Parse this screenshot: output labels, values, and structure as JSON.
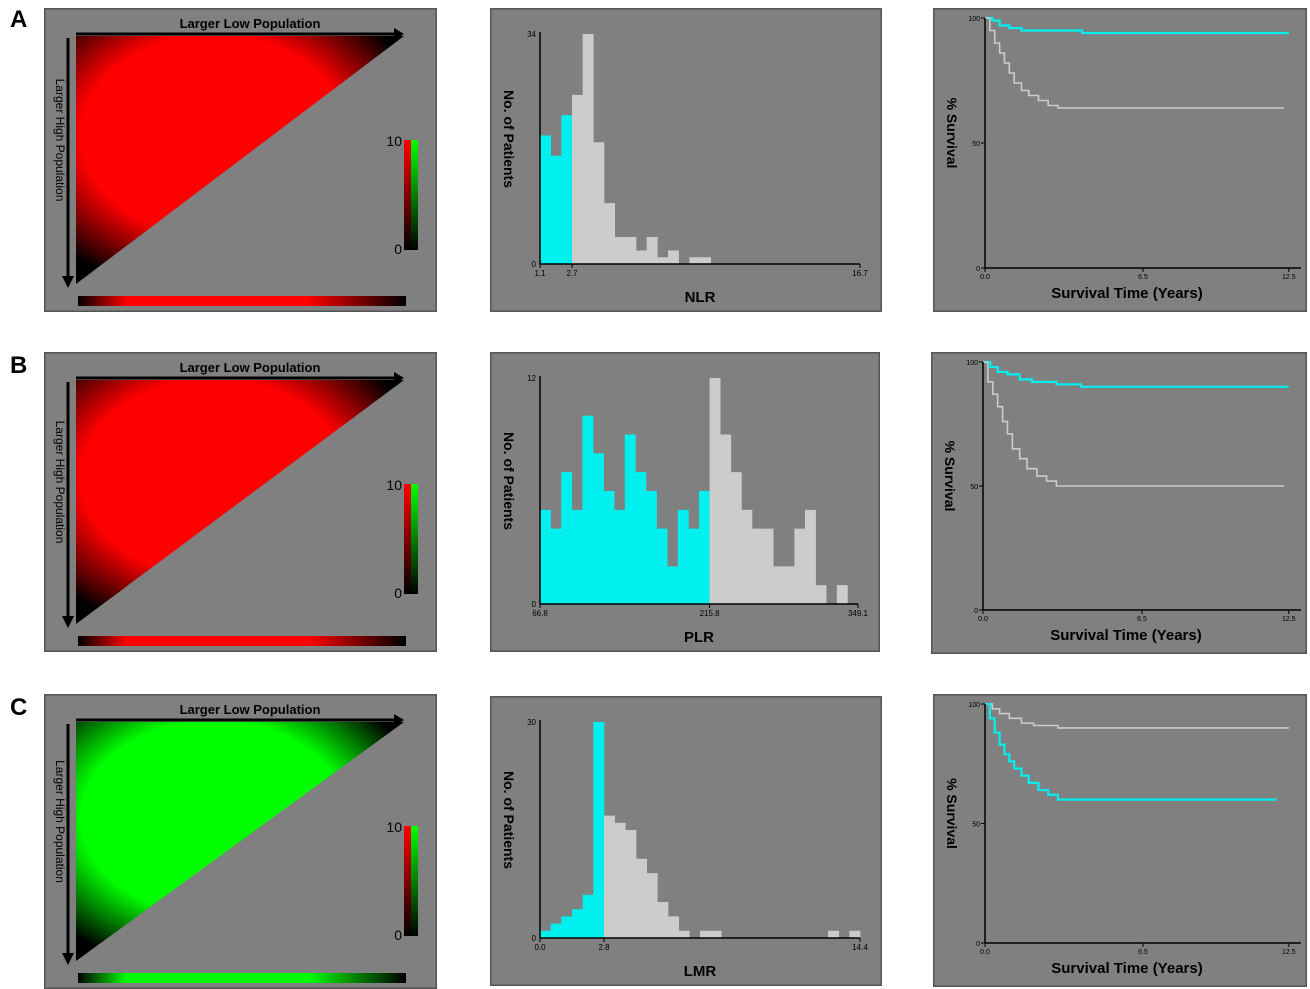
{
  "colors": {
    "panel_bg": "#808080",
    "frame": "#555555",
    "red": "#ff0000",
    "green": "#00ff00",
    "cyan": "#00f0f0",
    "light_gray": "#cccccc",
    "axis": "#000000"
  },
  "heatmap_labels": {
    "top_arrow": "Larger Low Population",
    "left_arrow": "Larger High Population",
    "scale_max": "10",
    "scale_min": "0"
  },
  "rows": [
    {
      "label": "A",
      "heatmap_color": "red"
    },
    {
      "label": "B",
      "heatmap_color": "red"
    },
    {
      "label": "C",
      "heatmap_color": "green"
    }
  ],
  "chart_data": [
    {
      "type": "heatmap",
      "panel": "A-left",
      "title": "",
      "xlabel": "Larger Low Population",
      "ylabel": "Larger High Population",
      "color_scale": {
        "min": 0,
        "max": 10,
        "colors": [
          "#000000",
          "#ff0000",
          "#00ff00"
        ]
      },
      "dominant_color": "red"
    },
    {
      "type": "bar",
      "panel": "A-middle",
      "xlabel": "NLR",
      "ylabel": "No. of Patients",
      "x_ticks": [
        "1.1",
        "2.7",
        "16.7"
      ],
      "y_ticks": [
        "0",
        "34"
      ],
      "ylim": [
        0,
        34
      ],
      "cutoff": "2.7",
      "values": [
        19,
        16,
        22,
        25,
        34,
        18,
        9,
        4,
        4,
        2,
        4,
        1,
        2,
        0,
        1,
        1,
        0,
        0,
        0,
        0,
        0,
        0,
        0,
        0,
        0,
        0,
        0,
        0,
        0,
        0
      ],
      "cutoff_index": 3
    },
    {
      "type": "line",
      "panel": "A-right",
      "xlabel": "Survival Time (Years)",
      "ylabel": "% Survival",
      "x_ticks": [
        "0.0",
        "6.5",
        "12.5"
      ],
      "y_ticks": [
        "0",
        "50",
        "100"
      ],
      "xlim": [
        0,
        13
      ],
      "ylim": [
        0,
        100
      ],
      "series": [
        {
          "color": "cyan",
          "x": [
            0,
            0.3,
            0.6,
            1.0,
            1.5,
            3.0,
            4.0,
            8.0,
            12.5
          ],
          "y": [
            100,
            99,
            97,
            96,
            95,
            95,
            94,
            94,
            94
          ]
        },
        {
          "color": "gray",
          "x": [
            0,
            0.2,
            0.4,
            0.6,
            0.8,
            1.0,
            1.2,
            1.5,
            1.8,
            2.2,
            2.6,
            3.0,
            4.0,
            8.0,
            12.3
          ],
          "y": [
            100,
            95,
            90,
            86,
            82,
            78,
            74,
            71,
            69,
            67,
            65,
            64,
            64,
            64,
            64
          ]
        }
      ]
    },
    {
      "type": "heatmap",
      "panel": "B-left",
      "title": "",
      "xlabel": "Larger Low Population",
      "ylabel": "Larger High Population",
      "color_scale": {
        "min": 0,
        "max": 10,
        "colors": [
          "#000000",
          "#ff0000",
          "#00ff00"
        ]
      },
      "dominant_color": "red"
    },
    {
      "type": "bar",
      "panel": "B-middle",
      "xlabel": "PLR",
      "ylabel": "No. of Patients",
      "x_ticks": [
        "66.8",
        "215.8",
        "349.1"
      ],
      "y_ticks": [
        "0",
        "12"
      ],
      "ylim": [
        0,
        12
      ],
      "cutoff": "215.8",
      "values": [
        5,
        4,
        7,
        5,
        10,
        8,
        6,
        5,
        9,
        7,
        6,
        4,
        2,
        5,
        4,
        6,
        12,
        9,
        7,
        5,
        4,
        4,
        2,
        2,
        4,
        5,
        1,
        0,
        1,
        0
      ],
      "cutoff_index": 16
    },
    {
      "type": "line",
      "panel": "B-right",
      "xlabel": "Survival Time (Years)",
      "ylabel": "% Survival",
      "x_ticks": [
        "0.0",
        "6.5",
        "12.5"
      ],
      "y_ticks": [
        "0",
        "50",
        "100"
      ],
      "xlim": [
        0,
        13
      ],
      "ylim": [
        0,
        100
      ],
      "series": [
        {
          "color": "cyan",
          "x": [
            0,
            0.3,
            0.6,
            1.0,
            1.5,
            2.0,
            3.0,
            4.0,
            8.0,
            12.5
          ],
          "y": [
            100,
            98,
            96,
            95,
            93,
            92,
            91,
            90,
            90,
            90
          ]
        },
        {
          "color": "gray",
          "x": [
            0,
            0.2,
            0.4,
            0.6,
            0.8,
            1.0,
            1.2,
            1.5,
            1.8,
            2.2,
            2.6,
            3.0,
            4.0,
            8.0,
            12.3
          ],
          "y": [
            100,
            92,
            87,
            82,
            76,
            71,
            65,
            61,
            57,
            54,
            52,
            50,
            50,
            50,
            50
          ]
        }
      ]
    },
    {
      "type": "heatmap",
      "panel": "C-left",
      "title": "",
      "xlabel": "Larger Low Population",
      "ylabel": "Larger High Population",
      "color_scale": {
        "min": 0,
        "max": 10,
        "colors": [
          "#000000",
          "#ff0000",
          "#00ff00"
        ]
      },
      "dominant_color": "green"
    },
    {
      "type": "bar",
      "panel": "C-middle",
      "xlabel": "LMR",
      "ylabel": "No. of Patients",
      "x_ticks": [
        "0.0",
        "2.8",
        "14.4"
      ],
      "y_ticks": [
        "0",
        "30"
      ],
      "ylim": [
        0,
        30
      ],
      "cutoff": "2.8",
      "values": [
        1,
        2,
        3,
        4,
        6,
        30,
        17,
        16,
        15,
        11,
        9,
        5,
        3,
        1,
        0,
        1,
        1,
        0,
        0,
        0,
        0,
        0,
        0,
        0,
        0,
        0,
        0,
        1,
        0,
        1
      ],
      "cutoff_index": 6
    },
    {
      "type": "line",
      "panel": "C-right",
      "xlabel": "Survival Time (Years)",
      "ylabel": "% Survival",
      "x_ticks": [
        "0.0",
        "6.5",
        "12.5"
      ],
      "y_ticks": [
        "0",
        "50",
        "100"
      ],
      "xlim": [
        0,
        13
      ],
      "ylim": [
        0,
        100
      ],
      "series": [
        {
          "color": "gray",
          "x": [
            0,
            0.3,
            0.6,
            1.0,
            1.5,
            2.0,
            3.0,
            4.0,
            8.0,
            12.5
          ],
          "y": [
            100,
            98,
            96,
            94,
            92,
            91,
            90,
            90,
            90,
            90
          ]
        },
        {
          "color": "cyan",
          "x": [
            0,
            0.2,
            0.4,
            0.6,
            0.8,
            1.0,
            1.2,
            1.5,
            1.8,
            2.2,
            2.6,
            3.0,
            4.0,
            8.0,
            12.0
          ],
          "y": [
            100,
            94,
            88,
            83,
            79,
            76,
            73,
            70,
            67,
            64,
            62,
            60,
            60,
            60,
            60
          ]
        }
      ]
    }
  ]
}
